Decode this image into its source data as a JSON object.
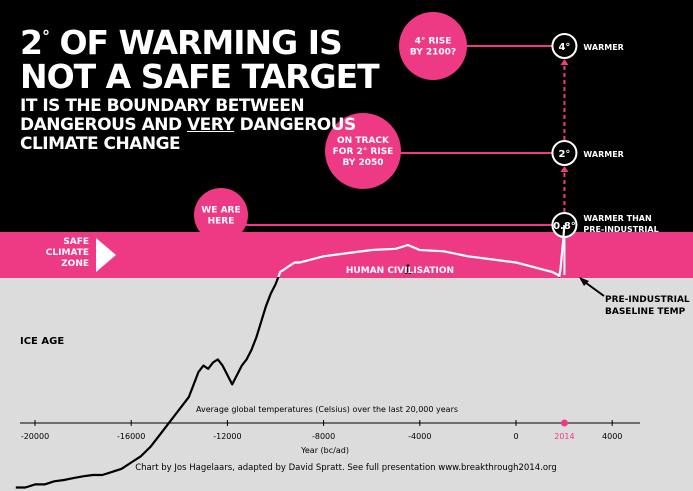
{
  "headline": {
    "line1_prefix": "2",
    "line1_deg": "°",
    "line1_suffix": " OF WARMING IS",
    "line2": "NOT A SAFE TARGET",
    "sub1": "IT IS THE BOUNDARY BETWEEN",
    "sub2_a": "DANGEROUS AND ",
    "sub2_b": "VERY",
    "sub2_c": " DANGEROUS",
    "sub3": "CLIMATE CHANGE"
  },
  "colors": {
    "accent": "#ee3a85",
    "background_top": "#000000",
    "background_bottom": "#dcdcdc",
    "zone": "#ee3a85"
  },
  "chart_data": {
    "type": "line",
    "caption": "Average global temperatures (Celsius) over the last 20,000 years",
    "xlabel": "Year (bc/ad)",
    "x_ticks": [
      "-20000",
      "-16000",
      "-12000",
      "-8000",
      "-4000",
      "0",
      "4000"
    ],
    "x_tick_values": [
      -20000,
      -16000,
      -12000,
      -8000,
      -4000,
      0,
      4000
    ],
    "xlim": [
      -20800,
      4200
    ],
    "highlight_year": {
      "x": 2014,
      "label": "2014"
    },
    "zone_label": [
      "SAFE",
      "CLIMATE",
      "ZONE"
    ],
    "ice_age_label": "ICE AGE",
    "civilisation_label": "HUMAN CIVILISATION",
    "baseline_label": [
      "PRE-INDUSTRIAL",
      "BASELINE TEMP"
    ],
    "series": [
      {
        "x": [
          -20800,
          -20400,
          -20000,
          -19600,
          -19200,
          -18800,
          -18400,
          -18000,
          -17600,
          -17200,
          -16800,
          -16400,
          -16000,
          -15600,
          -15200,
          -14800,
          -14400,
          -14000,
          -13600,
          -13400,
          -13200,
          -13000,
          -12800,
          -12600,
          -12400,
          -12200,
          -12000,
          -11800,
          -11600,
          -11400,
          -11200,
          -11000,
          -10800,
          -10600,
          -10400,
          -10200,
          -10000,
          -9800,
          -9600,
          -9400,
          -9200,
          -9000,
          -8500,
          -8000,
          -7000,
          -6000,
          -5000,
          -4500,
          -4000,
          -3000,
          -2000,
          -1000,
          0,
          500,
          1000,
          1500,
          1750,
          1800,
          1850,
          1900,
          1950,
          2014
        ],
        "y": [
          -3.4,
          -3.4,
          -3.35,
          -3.35,
          -3.3,
          -3.28,
          -3.25,
          -3.22,
          -3.2,
          -3.2,
          -3.15,
          -3.1,
          -3.0,
          -2.9,
          -2.75,
          -2.55,
          -2.35,
          -2.15,
          -1.95,
          -1.75,
          -1.55,
          -1.45,
          -1.5,
          -1.4,
          -1.35,
          -1.45,
          -1.6,
          -1.75,
          -1.6,
          -1.45,
          -1.35,
          -1.2,
          -1.0,
          -0.75,
          -0.5,
          -0.3,
          -0.15,
          0.05,
          0.1,
          0.15,
          0.2,
          0.2,
          0.25,
          0.3,
          0.35,
          0.4,
          0.42,
          0.48,
          0.4,
          0.38,
          0.3,
          0.25,
          0.2,
          0.15,
          0.1,
          0.05,
          0.0,
          -0.02,
          0.1,
          0.3,
          0.5,
          0.8
        ]
      }
    ],
    "markers": [
      {
        "label": "0.8°",
        "y": 0.8,
        "side_text": [
          "WARMER THAN",
          "PRE-INDUSTRIAL"
        ]
      },
      {
        "label": "2°",
        "y": 2,
        "side_text": [
          "WARMER"
        ]
      },
      {
        "label": "4°",
        "y": 4,
        "side_text": [
          "WARMER"
        ]
      }
    ],
    "callouts": [
      {
        "lines": [
          "WE ARE",
          "HERE"
        ],
        "target": "0.8°"
      },
      {
        "lines": [
          "ON TRACK",
          "FOR 2° RISE",
          "BY 2050"
        ],
        "target": "2°"
      },
      {
        "lines": [
          "4° RISE",
          "BY 2100?"
        ],
        "target": "4°"
      }
    ]
  },
  "credit": "Chart by Jos Hagelaars, adapted by David Spratt. See full presentation www.breakthrough2014.org"
}
